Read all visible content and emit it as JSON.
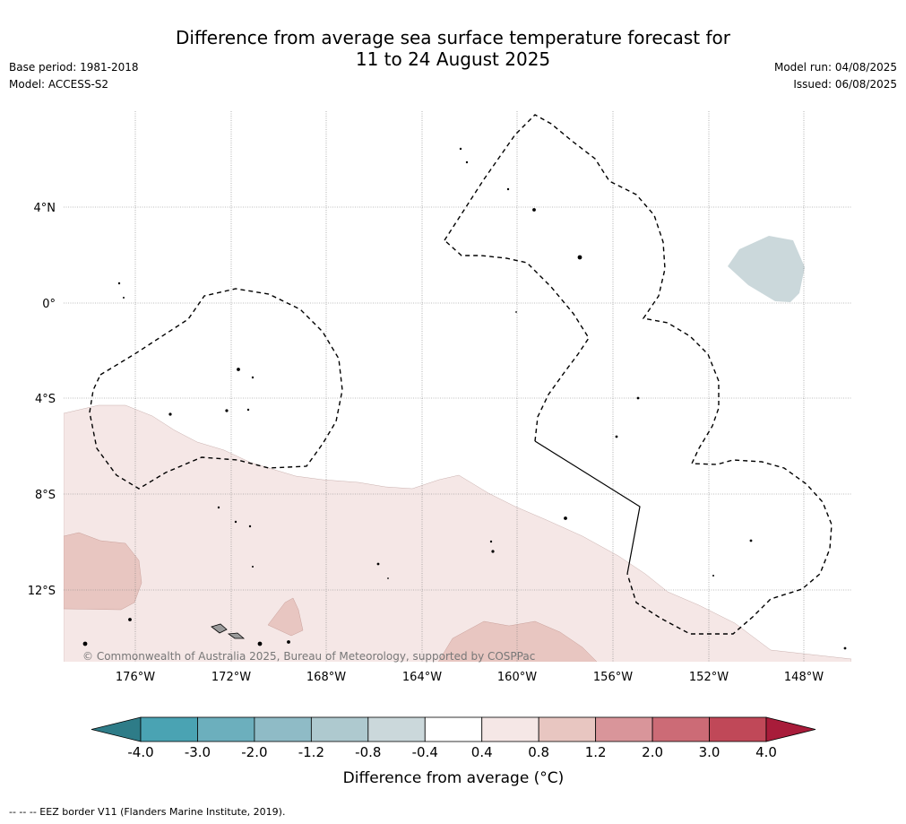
{
  "header": {
    "title_line1": "Difference from average sea surface temperature forecast for",
    "title_line2": "11 to 24 August 2025",
    "base_period": "Base period: 1981-2018",
    "model": "Model: ACCESS-S2",
    "model_run": "Model run: 04/08/2025",
    "issued": "Issued: 06/08/2025"
  },
  "map": {
    "lon_labels": [
      "176°W",
      "172°W",
      "168°W",
      "164°W",
      "160°W",
      "156°W",
      "152°W",
      "148°W"
    ],
    "lat_labels": [
      "4°N",
      "0°",
      "4°S",
      "8°S",
      "12°S"
    ],
    "copyright": "© Commonwealth of Australia 2025, Bureau of Meteorology, supported by COSPPac"
  },
  "legend": {
    "ticks": [
      "-4.0",
      "-3.0",
      "-2.0",
      "-1.2",
      "-0.8",
      "-0.4",
      "0.4",
      "0.8",
      "1.2",
      "2.0",
      "3.0",
      "4.0"
    ],
    "colors": [
      "#2e7c88",
      "#4aa3b3",
      "#6cafbd",
      "#8fbbc6",
      "#aec9cf",
      "#cbd8db",
      "#ffffff",
      "#f5e7e6",
      "#e8c6c1",
      "#d9959a",
      "#cc6b76",
      "#c04858",
      "#a81c3a"
    ],
    "label": "Difference from average (°C)"
  },
  "footer": {
    "eez_note": "--  --  -- EEZ border V11 (Flanders Marine Institute, 2019)."
  }
}
